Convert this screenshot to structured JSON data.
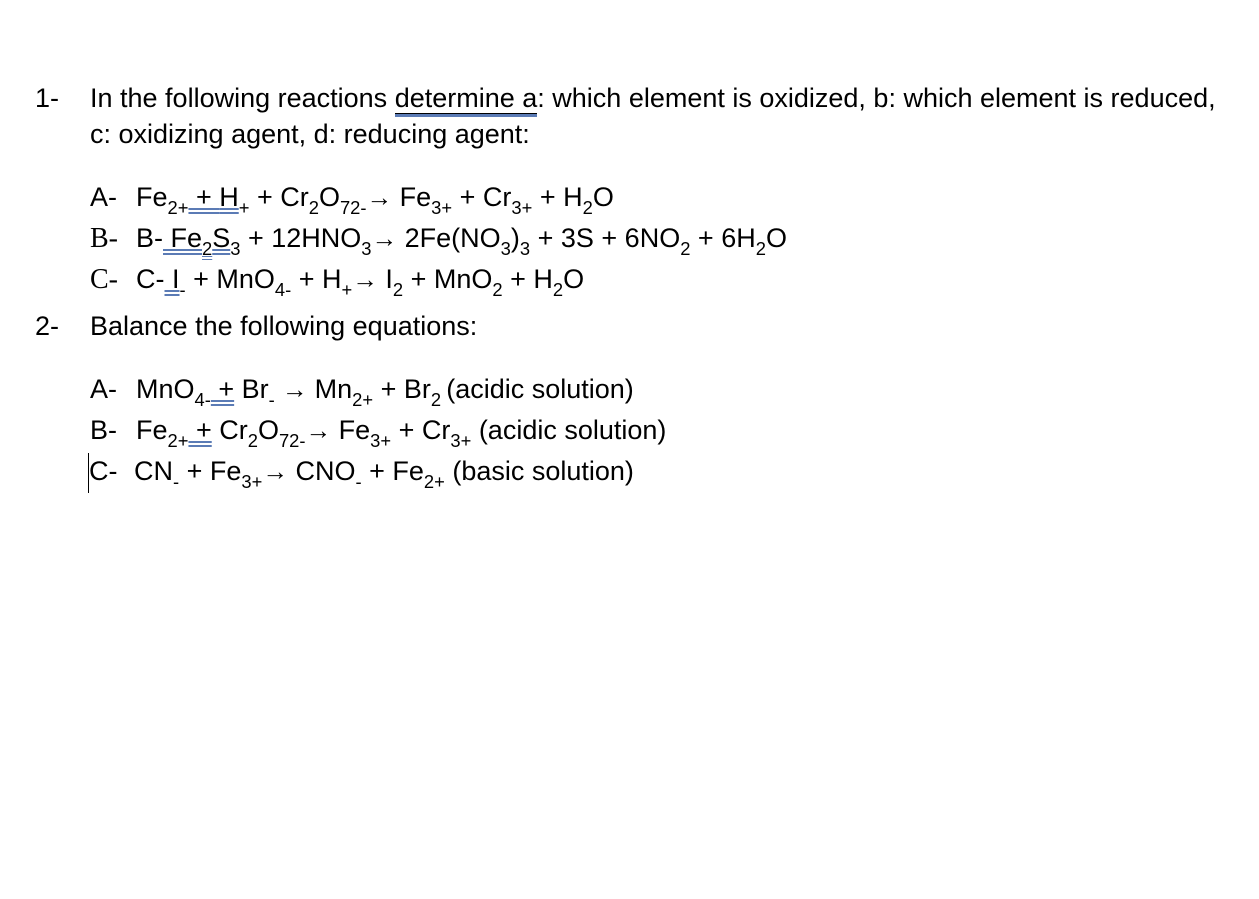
{
  "page": {
    "background_color": "#ffffff",
    "text_color": "#000000",
    "font_size_pt": 20,
    "underline_accent_color": "#5b7bb5"
  },
  "q1": {
    "number": "1-",
    "prompt_pre": "In the following reactions ",
    "prompt_det": "determine  a",
    "prompt_post": ": which element is oxidized, b: which element is reduced, c: oxidizing agent, d: reducing agent:",
    "A": {
      "label": "A-",
      "r1": "Fe",
      "r1s": "2+",
      "plus1": " + ",
      "r2u": " H",
      "r2s": "+",
      "plus2": " +  Cr",
      "r3s1": "2",
      "r3m": "O",
      "r3s2": "72-",
      "arrow": "→",
      "p1": "   Fe",
      "p1s": "3+",
      "p2": "  +  Cr",
      "p2s": "3+",
      "p3": "  + H",
      "p3s": "2",
      "p3e": "O"
    },
    "B": {
      "label_serif": "B-",
      "inner_label": "B-",
      "r1u": " Fe",
      "r1s": "2",
      "r1m": "S",
      "r1s2": "3",
      "plus1": "  +  12HNO",
      "r2s": "3",
      "arrow": "→",
      "p1": "  2Fe(NO",
      "p1s": "3",
      "p1m": ")",
      "p1s2": "3",
      "p2": "  +  3S  +  6NO",
      "p2s": "2",
      "p3": "  +  6H",
      "p3s": "2",
      "p3e": "O"
    },
    "C": {
      "label_serif": "C-",
      "inner_label": "C-",
      "r1u": " I",
      "r1s": "-",
      "plus1": "  +  MnO",
      "r2s": "4-",
      "plus2": " + H",
      "r3s": "+",
      "arrow": "→",
      "p1": "   I",
      "p1s": "2",
      "p2": "  +  MnO",
      "p2s": "2",
      "p3": "  + H",
      "p3s": "2",
      "p3e": "O"
    }
  },
  "q2": {
    "number": "2-",
    "prompt": "Balance the following equations:",
    "A": {
      "label": "A-",
      "r1": "MnO",
      "r1s": "4-",
      "r1u": " +",
      "plus1": "  Br",
      "r2s": "-",
      "arrow": " → ",
      "p1": "  Mn",
      "p1s": "2+",
      "p2": "  +  Br",
      "p2s": "2 ",
      "cond": "(acidic solution)"
    },
    "B": {
      "label": "B-",
      "r1": "Fe",
      "r1s": "2+",
      "r1u": "  +",
      "plus1": "  Cr",
      "r2s1": "2",
      "r2m": "O",
      "r2s2": "72-",
      "arrow": "→",
      "p1": "   Fe",
      "p1s": "3+",
      "p2": "  +  Cr",
      "p2s": "3+",
      "cond": "  (acidic solution)"
    },
    "C": {
      "label": "C-",
      "r1": "CN",
      "r1s": "-",
      "plus1": "  +  Fe",
      "r2s": "3+",
      "arrow": "→",
      "p1": "   CNO",
      "p1s": "-",
      "p2": "  +  Fe",
      "p2s": "2+",
      "cond": "    (basic solution)"
    }
  }
}
